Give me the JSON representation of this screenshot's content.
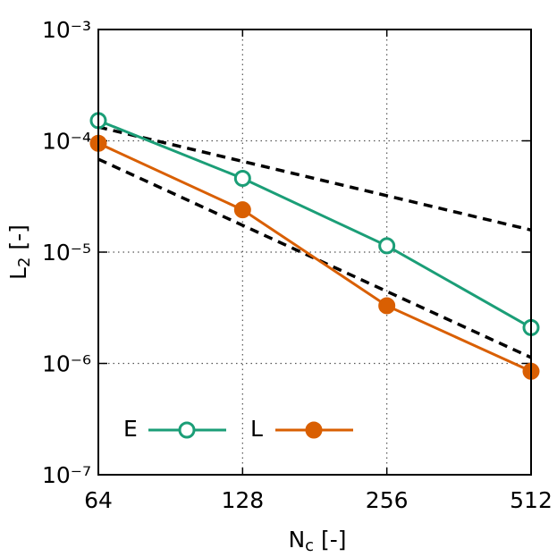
{
  "chart_data": {
    "type": "line",
    "xlabel": [
      "N",
      "c",
      " [-]"
    ],
    "ylabel": [
      "L",
      "2",
      " [-]"
    ],
    "x": [
      64,
      128,
      256,
      512
    ],
    "xscale": "log",
    "yscale": "log",
    "xlim": [
      64,
      512
    ],
    "ylim": [
      1e-07,
      0.001
    ],
    "xticks": [
      64,
      128,
      256,
      512
    ],
    "yticks": [
      {
        "value": 1e-07,
        "label": "10⁻⁷"
      },
      {
        "value": 1e-06,
        "label": "10⁻⁶"
      },
      {
        "value": 1e-05,
        "label": "10⁻⁵"
      },
      {
        "value": 0.0001,
        "label": "10⁻⁴"
      },
      {
        "value": 0.001,
        "label": "10⁻³"
      }
    ],
    "grid": true,
    "legend": "lower left",
    "series": [
      {
        "name": "E",
        "color": "#1b9e77",
        "marker": "open-circle",
        "values": [
          0.000152,
          4.6e-05,
          1.14e-05,
          2.1e-06
        ]
      },
      {
        "name": "L",
        "color": "#d95f02",
        "marker": "filled-circle",
        "values": [
          9.5e-05,
          2.4e-05,
          3.3e-06,
          8.5e-07
        ]
      }
    ],
    "reference_lines": [
      {
        "color": "#000000",
        "x": [
          64,
          512
        ],
        "values": [
          0.000133,
          1.58e-05
        ]
      },
      {
        "color": "#000000",
        "x": [
          64,
          512
        ],
        "values": [
          6.84e-05,
          1.13e-06
        ]
      }
    ]
  }
}
